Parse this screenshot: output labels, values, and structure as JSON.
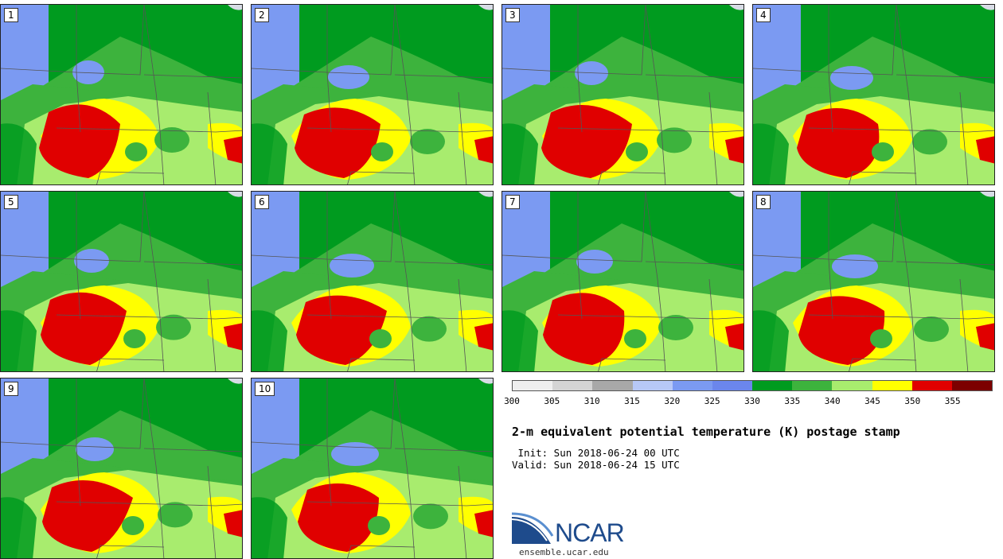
{
  "panels": [
    {
      "label": "1"
    },
    {
      "label": "2"
    },
    {
      "label": "3"
    },
    {
      "label": "4"
    },
    {
      "label": "5"
    },
    {
      "label": "6"
    },
    {
      "label": "7"
    },
    {
      "label": "8"
    },
    {
      "label": "9"
    },
    {
      "label": "10"
    }
  ],
  "colorbar": {
    "colors": [
      "#efefef",
      "#d4d4d4",
      "#a8a8a8",
      "#b7c8f7",
      "#7b9af2",
      "#6b86ec",
      "#009b1f",
      "#3db33d",
      "#a8ec6e",
      "#ffff00",
      "#e00000",
      "#7c0000"
    ],
    "ticks": [
      "300",
      "305",
      "310",
      "315",
      "320",
      "325",
      "330",
      "335",
      "340",
      "345",
      "350",
      "355"
    ]
  },
  "title": "2-m equivalent potential temperature (K) postage stamp",
  "init": " Init: Sun 2018-06-24 00 UTC",
  "valid": "Valid: Sun 2018-06-24 15 UTC",
  "logo_text": "NCAR",
  "site": "ensemble.ucar.edu"
}
